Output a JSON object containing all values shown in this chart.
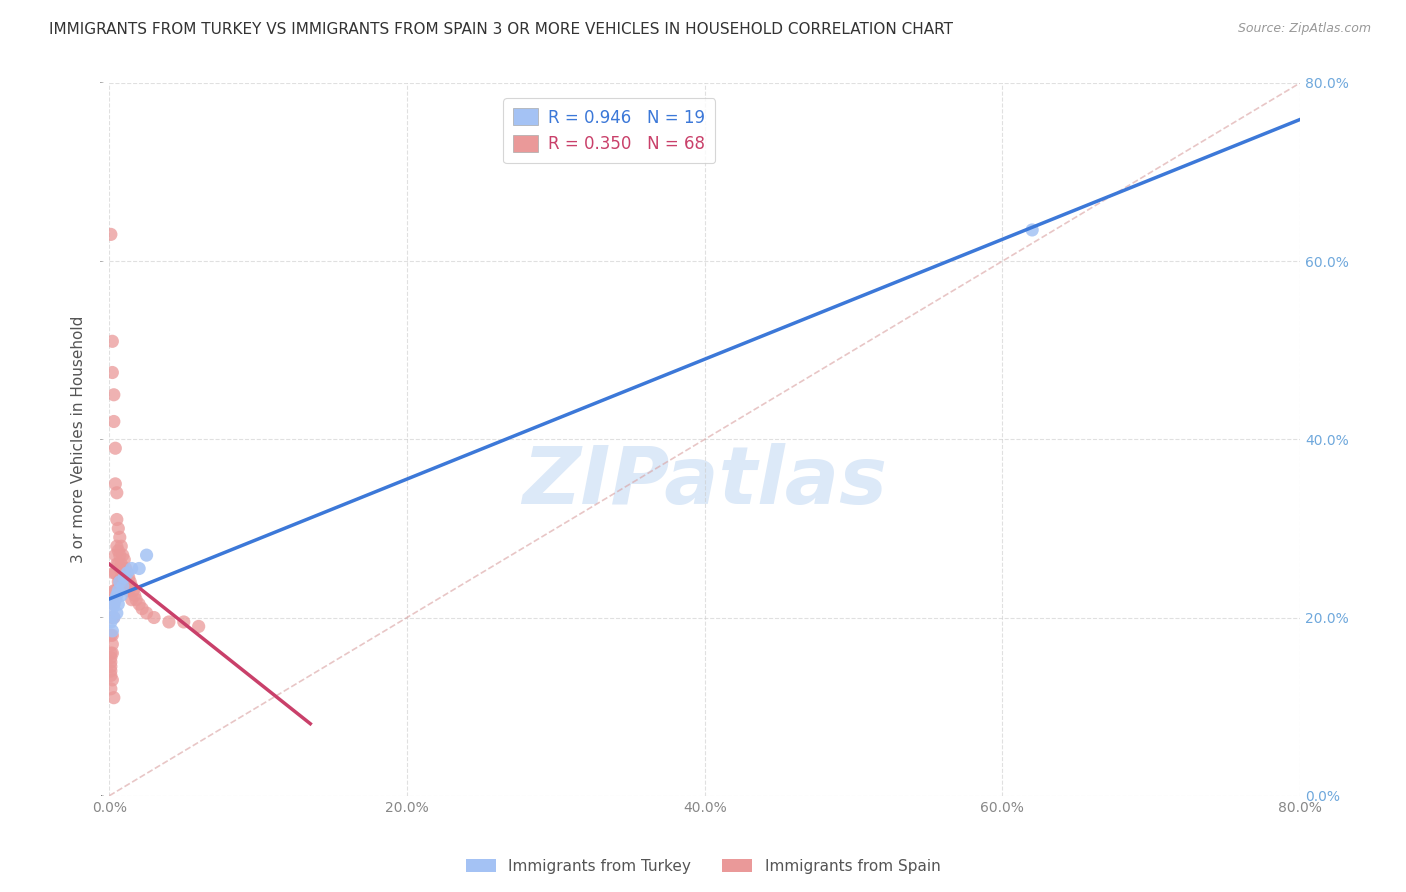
{
  "title": "IMMIGRANTS FROM TURKEY VS IMMIGRANTS FROM SPAIN 3 OR MORE VEHICLES IN HOUSEHOLD CORRELATION CHART",
  "source": "Source: ZipAtlas.com",
  "ylabel": "3 or more Vehicles in Household",
  "turkey_R": 0.946,
  "turkey_N": 19,
  "spain_R": 0.35,
  "spain_N": 68,
  "xmin": 0.0,
  "xmax": 0.8,
  "ymin": 0.0,
  "ymax": 0.8,
  "turkey_color": "#a4c2f4",
  "spain_color": "#ea9999",
  "turkey_line_color": "#3c78d8",
  "spain_line_color": "#c9406a",
  "bg_color": "#ffffff",
  "grid_color": "#cccccc",
  "watermark_color": "#dce9f8",
  "right_axis_color": "#6fa8dc",
  "turkey_x": [
    0.001,
    0.002,
    0.002,
    0.003,
    0.003,
    0.004,
    0.005,
    0.005,
    0.006,
    0.006,
    0.007,
    0.008,
    0.009,
    0.01,
    0.012,
    0.015,
    0.02,
    0.025,
    0.62
  ],
  "turkey_y": [
    0.195,
    0.185,
    0.21,
    0.2,
    0.215,
    0.22,
    0.205,
    0.225,
    0.215,
    0.23,
    0.24,
    0.225,
    0.235,
    0.245,
    0.25,
    0.255,
    0.255,
    0.27,
    0.635
  ],
  "spain_x": [
    0.001,
    0.001,
    0.001,
    0.001,
    0.001,
    0.001,
    0.001,
    0.001,
    0.002,
    0.002,
    0.002,
    0.002,
    0.002,
    0.002,
    0.002,
    0.003,
    0.003,
    0.003,
    0.003,
    0.003,
    0.003,
    0.004,
    0.004,
    0.004,
    0.004,
    0.004,
    0.005,
    0.005,
    0.005,
    0.005,
    0.006,
    0.006,
    0.006,
    0.006,
    0.007,
    0.007,
    0.007,
    0.007,
    0.008,
    0.008,
    0.008,
    0.009,
    0.009,
    0.01,
    0.01,
    0.01,
    0.011,
    0.011,
    0.012,
    0.012,
    0.013,
    0.013,
    0.014,
    0.015,
    0.015,
    0.016,
    0.017,
    0.018,
    0.02,
    0.022,
    0.025,
    0.03,
    0.04,
    0.05,
    0.06,
    0.001,
    0.002,
    0.003
  ],
  "spain_y": [
    0.63,
    0.18,
    0.16,
    0.155,
    0.15,
    0.145,
    0.14,
    0.135,
    0.51,
    0.475,
    0.22,
    0.2,
    0.18,
    0.17,
    0.16,
    0.45,
    0.42,
    0.25,
    0.23,
    0.215,
    0.2,
    0.39,
    0.35,
    0.27,
    0.25,
    0.23,
    0.34,
    0.31,
    0.28,
    0.26,
    0.3,
    0.275,
    0.26,
    0.24,
    0.29,
    0.27,
    0.255,
    0.24,
    0.28,
    0.26,
    0.245,
    0.27,
    0.255,
    0.265,
    0.25,
    0.235,
    0.255,
    0.24,
    0.25,
    0.235,
    0.245,
    0.23,
    0.24,
    0.235,
    0.22,
    0.23,
    0.225,
    0.22,
    0.215,
    0.21,
    0.205,
    0.2,
    0.195,
    0.195,
    0.19,
    0.12,
    0.13,
    0.11
  ]
}
